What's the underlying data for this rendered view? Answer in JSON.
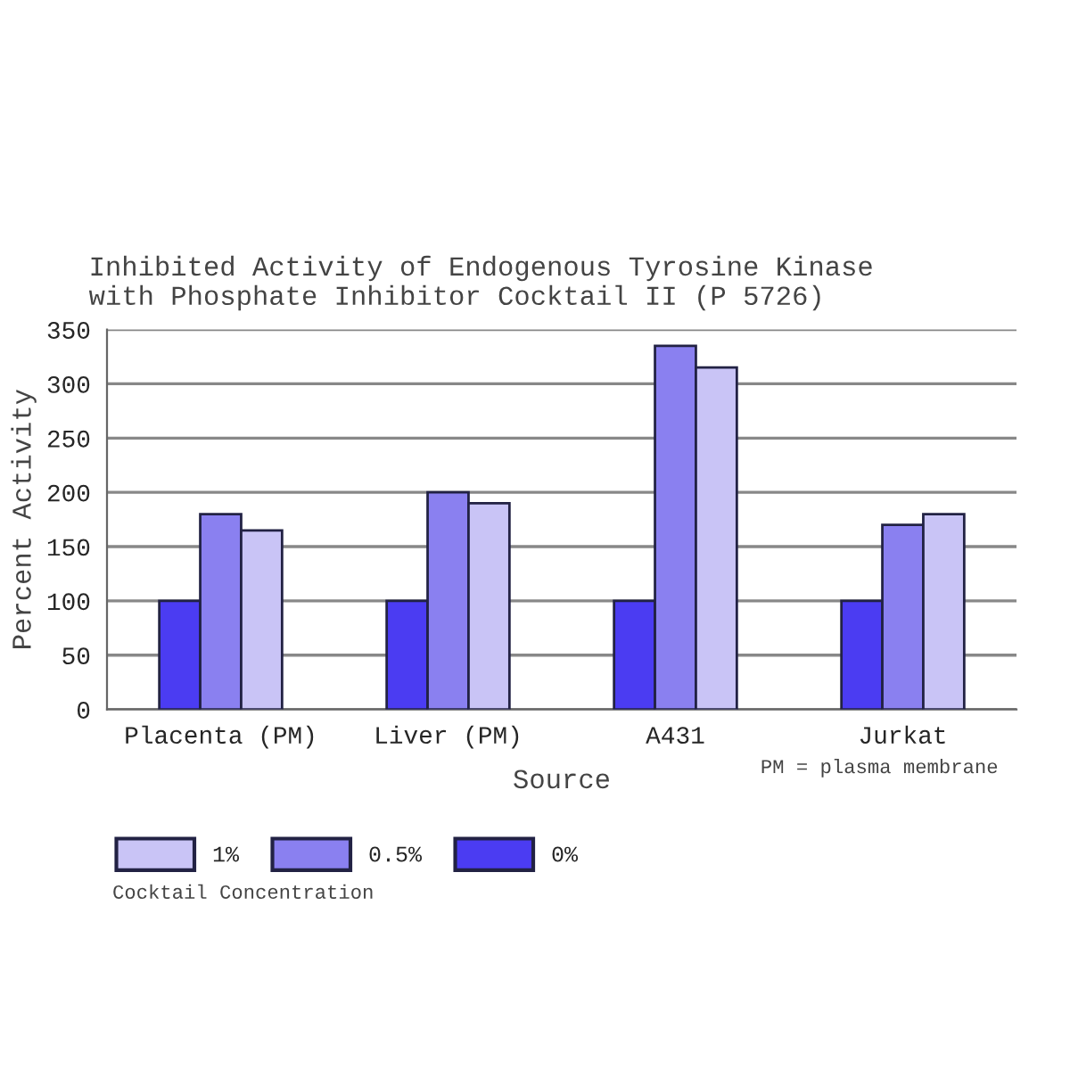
{
  "chart_data": {
    "type": "bar",
    "title": "Inhibited Activity of Endogenous Tyrosine Kinase\nwith Phosphate Inhibitor Cocktail II (P 5726)",
    "xlabel": "Source",
    "ylabel": "Percent Activity",
    "legend_title": "Cocktail Concentration",
    "categories": [
      "Placenta (PM)",
      "Liver (PM)",
      "A431",
      "Jurkat"
    ],
    "series": [
      {
        "name": "0%",
        "color": "#4b3cf2",
        "values": [
          100,
          100,
          100,
          100
        ]
      },
      {
        "name": "0.5%",
        "color": "#8a80f0",
        "values": [
          180,
          200,
          335,
          170
        ]
      },
      {
        "name": "1%",
        "color": "#c9c4f6",
        "values": [
          165,
          190,
          315,
          180
        ]
      }
    ],
    "ylim": [
      0,
      350
    ],
    "yticks": [
      0,
      50,
      100,
      150,
      200,
      250,
      300,
      350
    ],
    "grid": "y",
    "legend": "bottom",
    "annotations": [
      "PM = plasma membrane"
    ]
  }
}
